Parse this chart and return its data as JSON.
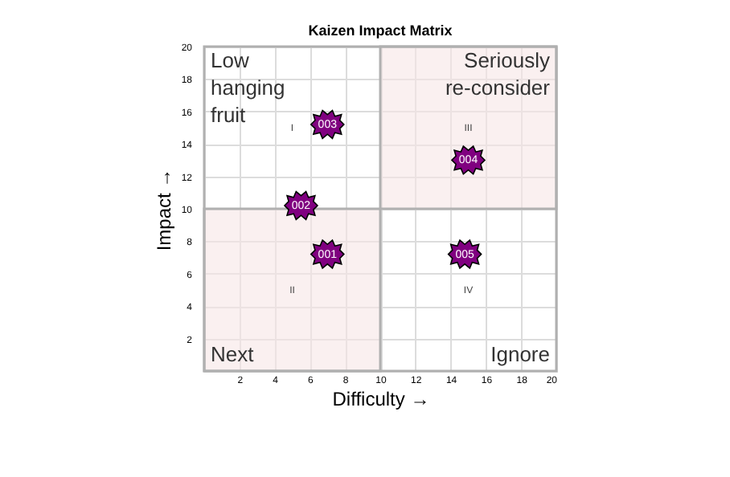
{
  "chart_data": {
    "type": "scatter",
    "title": "Kaizen Impact Matrix",
    "xlabel": "Difficulty →",
    "ylabel": "Impact →",
    "x": [
      7,
      5.5,
      7,
      15,
      14.8
    ],
    "series": [
      {
        "color": "#800080",
        "values": [
          7.2,
          10.2,
          15.2,
          13,
          7.2
        ]
      }
    ],
    "value_labels": [
      "001",
      "002",
      "003",
      "004",
      "005"
    ],
    "marker": "star",
    "grid": true,
    "xlim": [
      0,
      20
    ],
    "ylim": [
      0,
      20
    ],
    "xticks": [
      {
        "value": 0,
        "label": null
      },
      2,
      4,
      6,
      8,
      10,
      12,
      14,
      16,
      18,
      20
    ],
    "yticks": [
      {
        "value": 0,
        "label": null
      },
      2,
      4,
      6,
      8,
      10,
      12,
      14,
      16,
      18,
      20
    ],
    "bands": [
      {
        "axis": "x",
        "from": 0,
        "to": 10,
        "color": "#f7e6e6"
      },
      {
        "axis": "x",
        "from": 10,
        "to": 20,
        "color": "#f7e6e6"
      }
    ],
    "annotations": [
      "Low hanging fruit",
      "Seriously re-consider",
      "Next",
      "Ignore",
      "I",
      "III",
      "II",
      "IV"
    ]
  }
}
